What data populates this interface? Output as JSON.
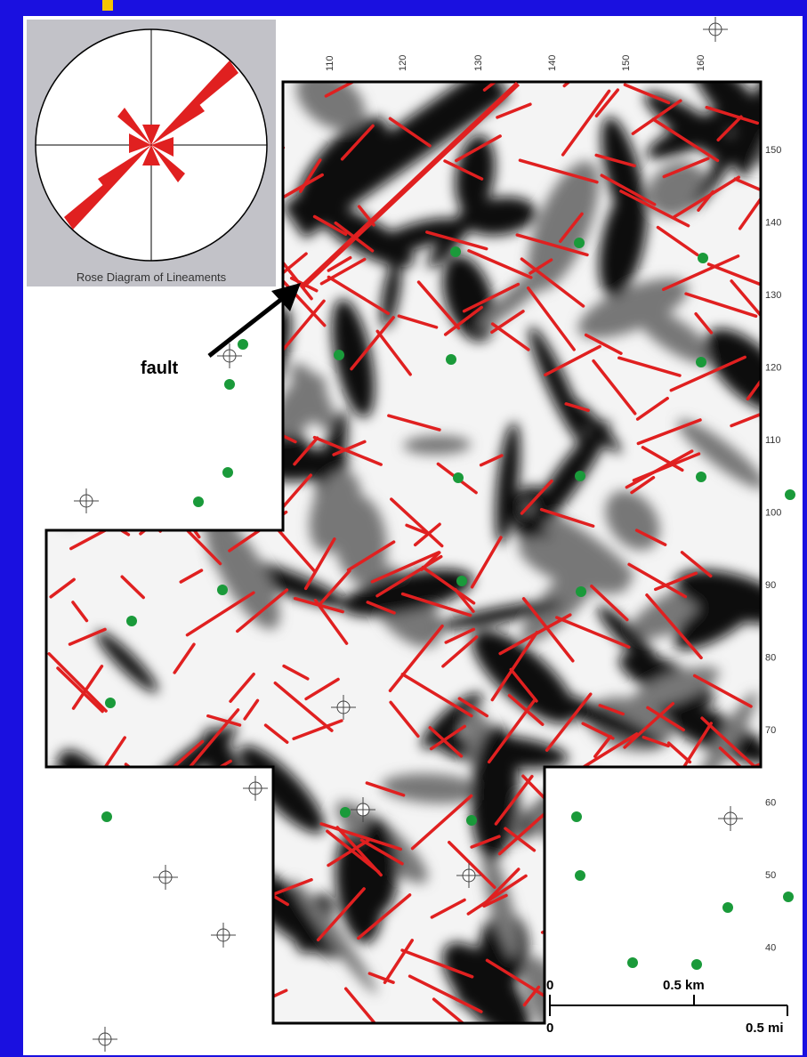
{
  "rose_title": "Rose Diagram of Lineaments",
  "annotation": "fault",
  "grid_labels": {
    "top": [
      "110",
      "120",
      "130",
      "140",
      "150",
      "160"
    ],
    "right": [
      "150",
      "140",
      "130",
      "120",
      "110",
      "100",
      "90",
      "80",
      "70",
      "60",
      "50",
      "40"
    ]
  },
  "scale_bar": {
    "km_start": "0",
    "km_end": "0.5 km",
    "mi_start": "0",
    "mi_end": "0.5 mi"
  }
}
